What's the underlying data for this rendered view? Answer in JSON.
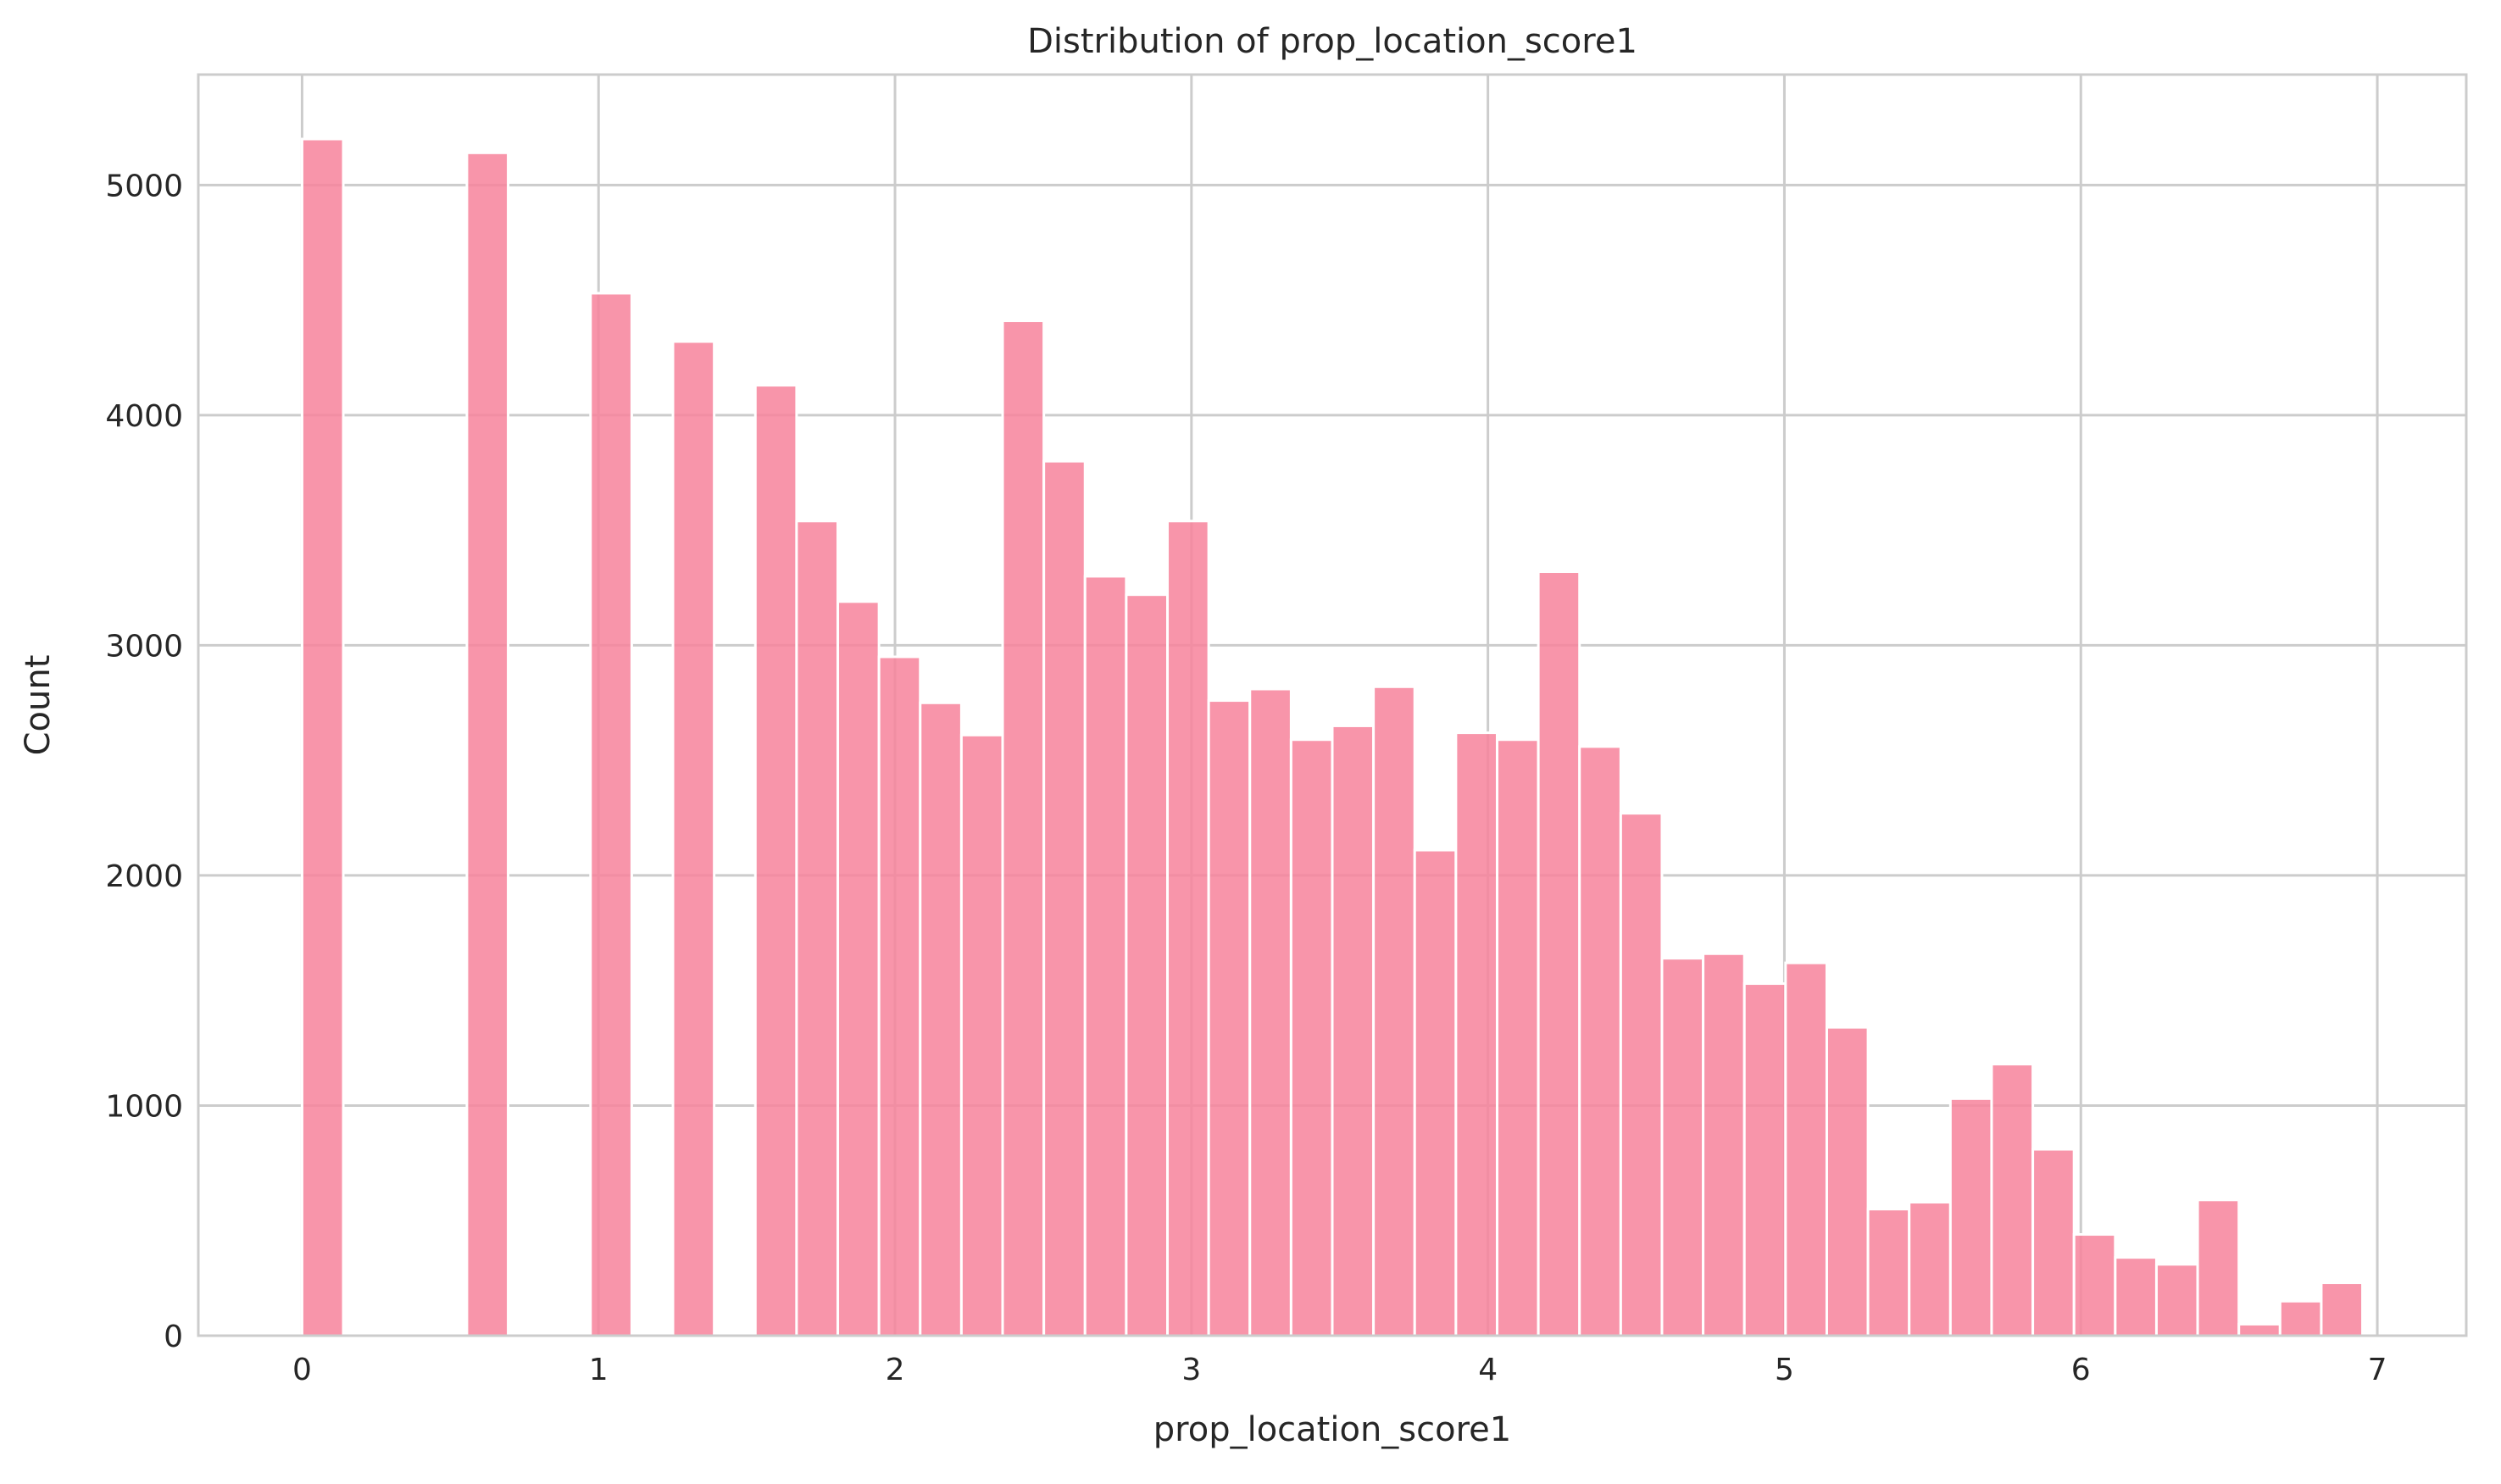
{
  "chart_data": {
    "type": "bar",
    "title": "Distribution of prop_location_score1",
    "xlabel": "prop_location_score1",
    "ylabel": "Count",
    "xlim": [
      -0.35,
      7.3
    ],
    "ylim": [
      0,
      5480
    ],
    "xticks": [
      0,
      1,
      2,
      3,
      4,
      5,
      6,
      7
    ],
    "yticks": [
      0,
      1000,
      2000,
      3000,
      4000,
      5000
    ],
    "grid": true,
    "bar_color": "#f7839b",
    "bins": [
      {
        "x0": 0.0,
        "x1": 0.139,
        "count": 5200
      },
      {
        "x0": 0.556,
        "x1": 0.695,
        "count": 5140
      },
      {
        "x0": 0.973,
        "x1": 1.112,
        "count": 4530
      },
      {
        "x0": 1.251,
        "x1": 1.39,
        "count": 4320
      },
      {
        "x0": 1.529,
        "x1": 1.668,
        "count": 4130
      },
      {
        "x0": 1.668,
        "x1": 1.807,
        "count": 3540
      },
      {
        "x0": 1.807,
        "x1": 1.946,
        "count": 3190
      },
      {
        "x0": 1.946,
        "x1": 2.085,
        "count": 2950
      },
      {
        "x0": 2.085,
        "x1": 2.224,
        "count": 2750
      },
      {
        "x0": 2.224,
        "x1": 2.363,
        "count": 2610
      },
      {
        "x0": 2.363,
        "x1": 2.502,
        "count": 4410
      },
      {
        "x0": 2.502,
        "x1": 2.641,
        "count": 3800
      },
      {
        "x0": 2.641,
        "x1": 2.78,
        "count": 3300
      },
      {
        "x0": 2.78,
        "x1": 2.919,
        "count": 3220
      },
      {
        "x0": 2.919,
        "x1": 3.058,
        "count": 3540
      },
      {
        "x0": 3.058,
        "x1": 3.197,
        "count": 2760
      },
      {
        "x0": 3.197,
        "x1": 3.336,
        "count": 2810
      },
      {
        "x0": 3.336,
        "x1": 3.475,
        "count": 2590
      },
      {
        "x0": 3.475,
        "x1": 3.614,
        "count": 2650
      },
      {
        "x0": 3.614,
        "x1": 3.753,
        "count": 2820
      },
      {
        "x0": 3.753,
        "x1": 3.892,
        "count": 2110
      },
      {
        "x0": 3.892,
        "x1": 4.031,
        "count": 2620
      },
      {
        "x0": 4.031,
        "x1": 4.17,
        "count": 2590
      },
      {
        "x0": 4.17,
        "x1": 4.309,
        "count": 3320
      },
      {
        "x0": 4.309,
        "x1": 4.448,
        "count": 2560
      },
      {
        "x0": 4.448,
        "x1": 4.587,
        "count": 2270
      },
      {
        "x0": 4.587,
        "x1": 4.726,
        "count": 1640
      },
      {
        "x0": 4.726,
        "x1": 4.865,
        "count": 1660
      },
      {
        "x0": 4.865,
        "x1": 5.004,
        "count": 1530
      },
      {
        "x0": 5.004,
        "x1": 5.143,
        "count": 1620
      },
      {
        "x0": 5.143,
        "x1": 5.282,
        "count": 1340
      },
      {
        "x0": 5.282,
        "x1": 5.421,
        "count": 550
      },
      {
        "x0": 5.421,
        "x1": 5.56,
        "count": 580
      },
      {
        "x0": 5.56,
        "x1": 5.699,
        "count": 1030
      },
      {
        "x0": 5.699,
        "x1": 5.838,
        "count": 1180
      },
      {
        "x0": 5.838,
        "x1": 5.977,
        "count": 810
      },
      {
        "x0": 5.977,
        "x1": 6.116,
        "count": 440
      },
      {
        "x0": 6.116,
        "x1": 6.255,
        "count": 340
      },
      {
        "x0": 6.255,
        "x1": 6.394,
        "count": 310
      },
      {
        "x0": 6.394,
        "x1": 6.533,
        "count": 590
      },
      {
        "x0": 6.533,
        "x1": 6.672,
        "count": 50
      },
      {
        "x0": 6.672,
        "x1": 6.811,
        "count": 150
      },
      {
        "x0": 6.811,
        "x1": 6.95,
        "count": 230
      }
    ]
  }
}
